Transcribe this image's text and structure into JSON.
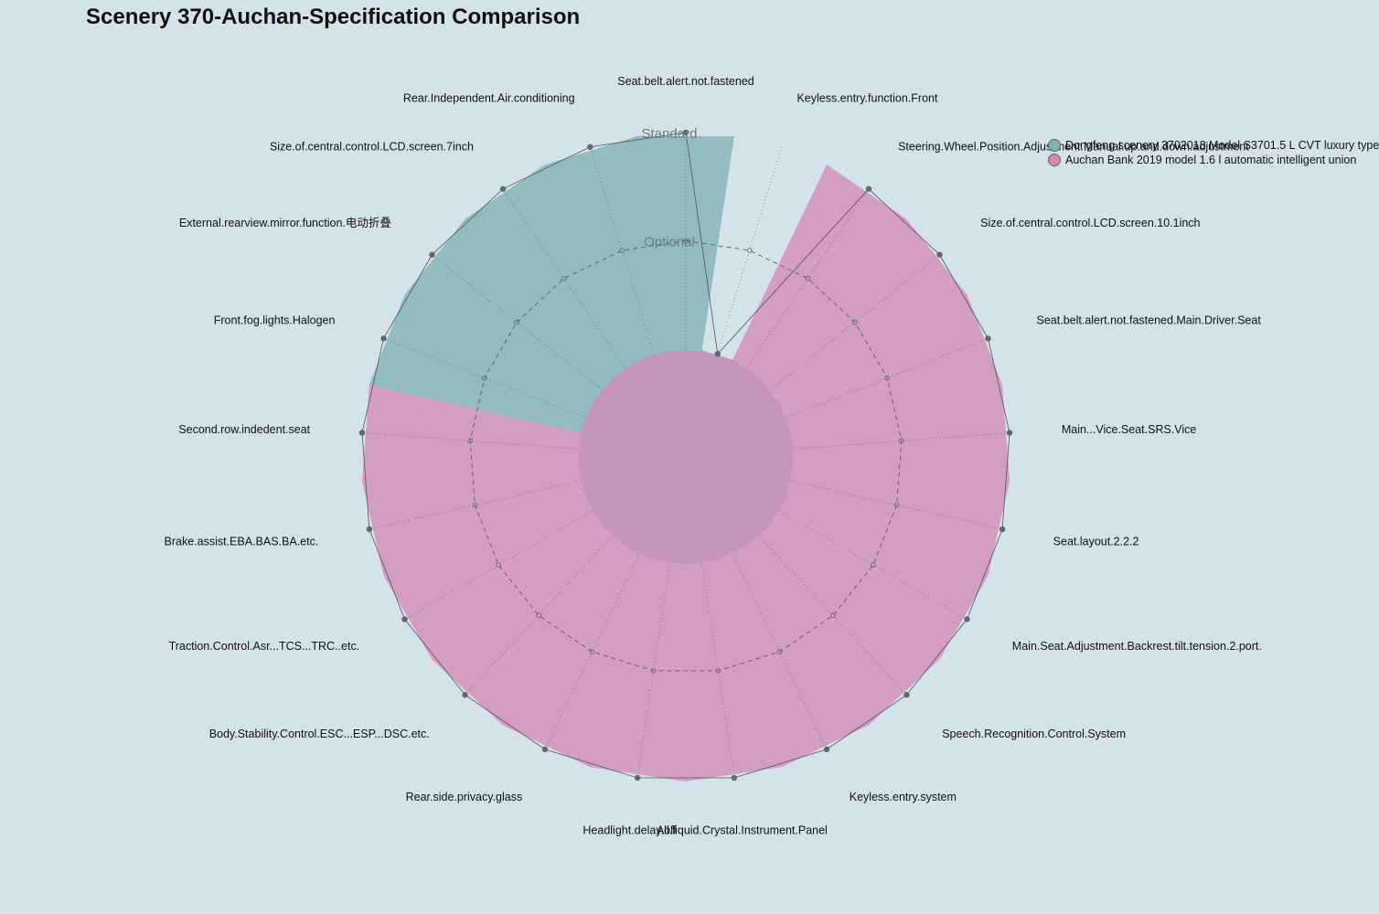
{
  "chart_data": {
    "type": "radar",
    "title": "Scenery 370-Auchan-Specification Comparison",
    "level_labels": [
      "Standard",
      "Optional",
      ""
    ],
    "categories": [
      "Seat.belt.alert.not.fastened",
      "Keyless.entry.function.Front",
      "Steering.Wheel.Position.Adjustment.Manual.up.and.down.adjustment",
      "Size.of.central.control.LCD.screen.10.1inch",
      "Seat.belt.alert.not.fastened.Main.Driver.Seat",
      "Main...Vice.Seat.SRS.Vice",
      "Seat.layout.2.2.2",
      "Main.Seat.Adjustment.Backrest.tilt.tension.2.port.",
      "Speech.Recognition.Control.System",
      "Keyless.entry.system",
      "All.liquid.Crystal.Instrument.Panel",
      "Headlight.delay.off",
      "Rear.side.privacy.glass",
      "Body.Stability.Control.ESC...ESP...DSC.etc.",
      "Traction.Control.Asr...TCS...TRC..etc.",
      "Brake.assist.EBA.BAS.BA.etc.",
      "Second.row.indedent.seat",
      "Front.fog.lights.Halogen",
      "External.rearview.mirror.function.电动折叠",
      "Size.of.central.control.LCD.screen.7inch",
      "Rear.Independent.Air.conditioning"
    ],
    "series": [
      {
        "name": "Dongfeng scenery 3702018 Model S3701.5 L CVT luxury type",
        "color": "#7fb1b5",
        "values": [
          1,
          0,
          0,
          0,
          0,
          0,
          0,
          0,
          0,
          0,
          0,
          0,
          0,
          0,
          0,
          0,
          0,
          1,
          1,
          1,
          1
        ]
      },
      {
        "name": "Auchan Bank 2019 model 1.6 l automatic intelligent union",
        "color": "#d48ab8",
        "values": [
          0,
          0,
          1,
          1,
          1,
          1,
          1,
          1,
          1,
          1,
          1,
          1,
          1,
          1,
          1,
          1,
          1,
          0,
          0,
          0,
          0
        ]
      }
    ],
    "grid": true,
    "legend_position": "top-right"
  }
}
